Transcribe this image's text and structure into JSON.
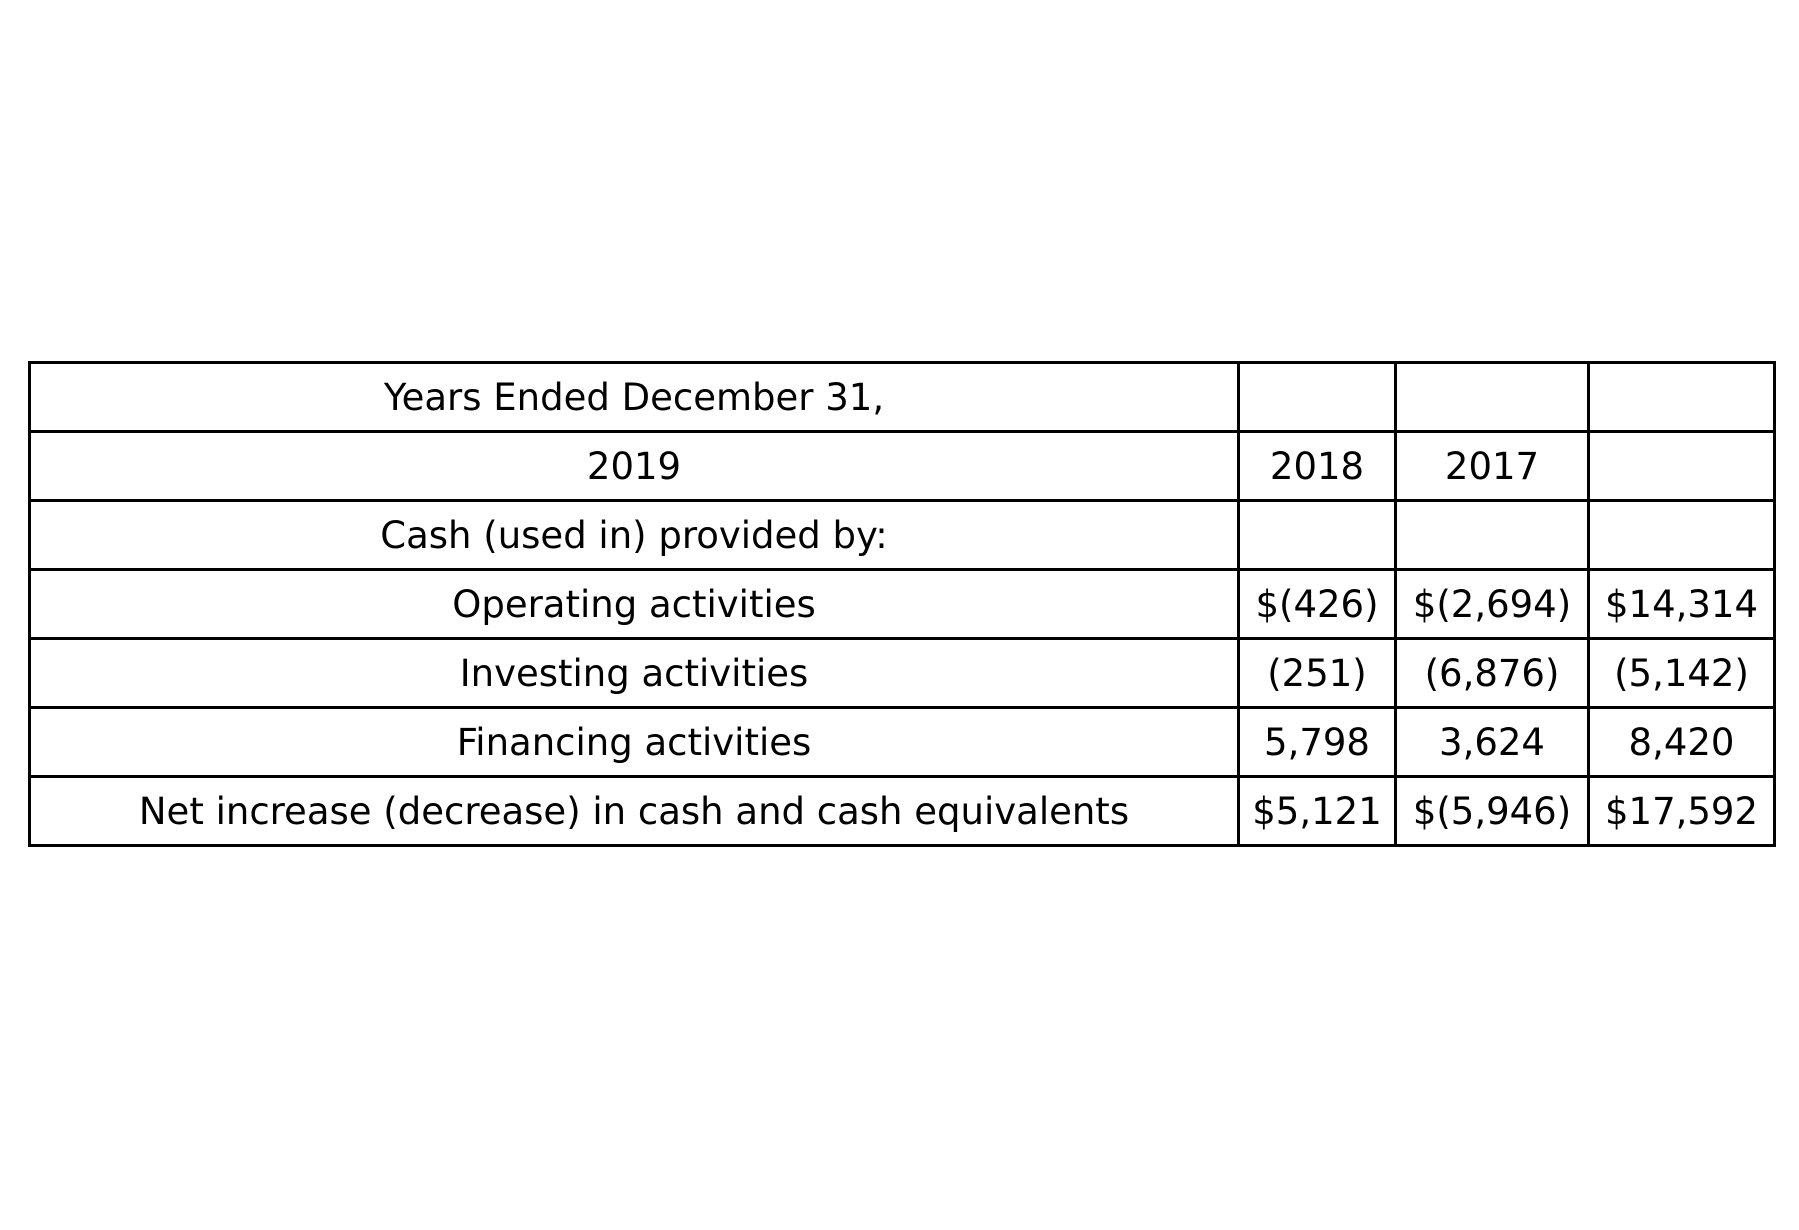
{
  "table": {
    "rows": [
      {
        "label": "Years Ended December 31,",
        "cells": [
          "",
          "",
          ""
        ]
      },
      {
        "label": "2019",
        "cells": [
          "2018",
          "2017",
          ""
        ]
      },
      {
        "label": "Cash (used in) provided by:",
        "cells": [
          "",
          "",
          ""
        ]
      },
      {
        "label": "Operating activities",
        "cells": [
          "$(426)",
          "$(2,694)",
          "$14,314"
        ]
      },
      {
        "label": "Investing activities",
        "cells": [
          "(251)",
          "(6,876)",
          "(5,142)"
        ]
      },
      {
        "label": "Financing activities",
        "cells": [
          "5,798",
          "3,624",
          "8,420"
        ]
      },
      {
        "label": "Net increase (decrease) in cash and cash equivalents",
        "cells": [
          "$5,121",
          "$(5,946)",
          "$17,592"
        ]
      }
    ]
  }
}
